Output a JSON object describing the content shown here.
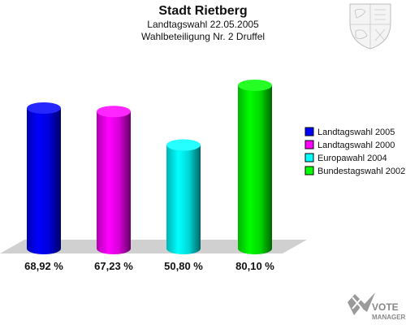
{
  "chart_data": {
    "type": "bar",
    "title": "Stadt Rietberg",
    "subtitle_lines": [
      "Landtagswahl 22.05.2005",
      "Wahlbeteiligung Nr. 2 Druffel"
    ],
    "categories": [
      "Landtagswahl 2005",
      "Landtagswahl 2000",
      "Europawahl 2004",
      "Bundestagswahl 2002"
    ],
    "values": [
      68.92,
      67.23,
      50.8,
      80.1
    ],
    "value_labels": [
      "68,92 %",
      "67,23 %",
      "50,80 %",
      "80,10 %"
    ],
    "colors": [
      "#0000ff",
      "#ff00ff",
      "#00ffff",
      "#00ff00"
    ],
    "xlabel": "",
    "ylabel": "",
    "ylim": [
      0,
      100
    ],
    "legend_position": "right",
    "grid": false
  },
  "logo": {
    "line1": "VOTE",
    "line2": "MANAGER"
  },
  "icons": {
    "coat_of_arms": "coat-of-arms-icon",
    "vote_manager": "vote-manager-logo-icon"
  }
}
